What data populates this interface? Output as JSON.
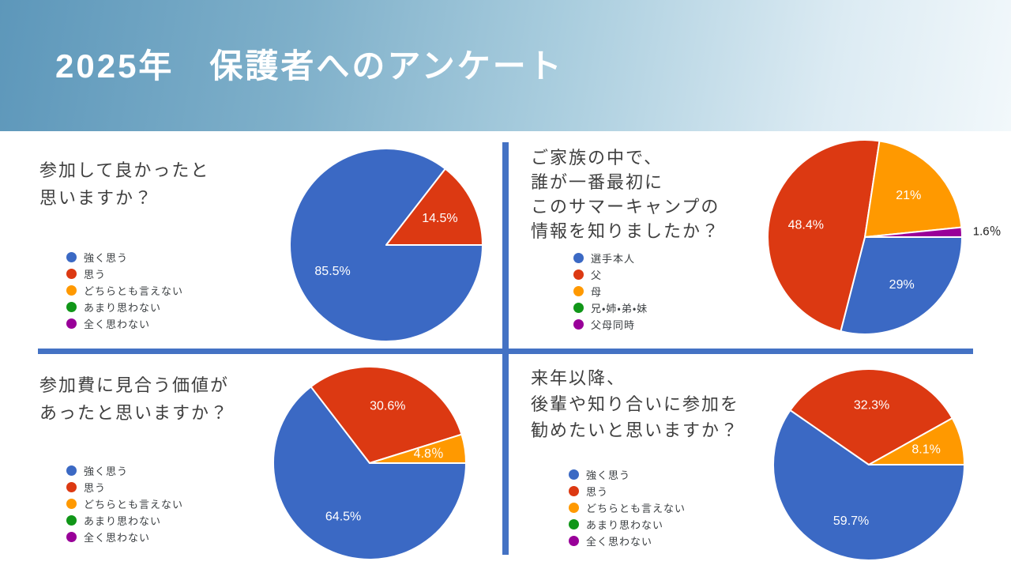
{
  "header": {
    "title": "2025年　保護者へのアンケート"
  },
  "palette": {
    "blue": "#3B69C4",
    "red": "#DC3912",
    "orange": "#FF9900",
    "green": "#109618",
    "purple": "#990099",
    "divider": "#4472C4",
    "slice_label": "#FFFFFF",
    "outside_label": "#1A1A1A"
  },
  "chart_data": [
    {
      "type": "pie",
      "question": "参加して良かったと思いますか？",
      "question_lines": [
        "参加して良かったと",
        "思いますか？"
      ],
      "legend_position": "left",
      "slices": [
        {
          "label": "強く思う",
          "color": "blue",
          "value": 85.5,
          "data_label": "85.5%"
        },
        {
          "label": "思う",
          "color": "red",
          "value": 14.5,
          "data_label": "14.5%"
        },
        {
          "label": "どちらとも言えない",
          "color": "orange",
          "value": 0
        },
        {
          "label": "あまり思わない",
          "color": "green",
          "value": 0
        },
        {
          "label": "全く思わない",
          "color": "purple",
          "value": 0
        }
      ]
    },
    {
      "type": "pie",
      "question": "ご家族の中で、誰が一番最初にこのサマーキャンプの情報を知りましたか？",
      "question_lines": [
        "ご家族の中で、",
        "誰が一番最初に",
        "このサマーキャンプの",
        "情報を知りましたか？"
      ],
      "legend_position": "left",
      "slices": [
        {
          "label": "選手本人",
          "color": "blue",
          "value": 29,
          "data_label": "29%"
        },
        {
          "label": "父",
          "color": "red",
          "value": 48.4,
          "data_label": "48.4%"
        },
        {
          "label": "母",
          "color": "orange",
          "value": 21,
          "data_label": "21%"
        },
        {
          "label": "兄・姉・弟・妹",
          "color": "green",
          "value": 0
        },
        {
          "label": "父母同時",
          "color": "purple",
          "value": 1.6,
          "data_label": "1.6％",
          "label_outside": true
        }
      ]
    },
    {
      "type": "pie",
      "question": "参加費に見合う価値があったと思いますか？",
      "question_lines": [
        "参加費に見合う価値が",
        "あったと思いますか？"
      ],
      "legend_position": "left",
      "slices": [
        {
          "label": "強く思う",
          "color": "blue",
          "value": 64.5,
          "data_label": "64.5%"
        },
        {
          "label": "思う",
          "color": "red",
          "value": 30.6,
          "data_label": "30.6%"
        },
        {
          "label": "どちらとも言えない",
          "color": "orange",
          "value": 4.8,
          "data_label": "4.8％"
        },
        {
          "label": "あまり思わない",
          "color": "green",
          "value": 0
        },
        {
          "label": "全く思わない",
          "color": "purple",
          "value": 0
        }
      ]
    },
    {
      "type": "pie",
      "question": "来年以降、後輩や知り合いに参加を勧めたいと思いますか？",
      "question_lines": [
        "来年以降、",
        "後輩や知り合いに参加を",
        "勧めたいと思いますか？"
      ],
      "legend_position": "left",
      "slices": [
        {
          "label": "強く思う",
          "color": "blue",
          "value": 59.7,
          "data_label": "59.7%"
        },
        {
          "label": "思う",
          "color": "red",
          "value": 32.3,
          "data_label": "32.3%"
        },
        {
          "label": "どちらとも言えない",
          "color": "orange",
          "value": 8.1,
          "data_label": "8.1%"
        },
        {
          "label": "あまり思わない",
          "color": "green",
          "value": 0
        },
        {
          "label": "全く思わない",
          "color": "purple",
          "value": 0
        }
      ]
    }
  ]
}
